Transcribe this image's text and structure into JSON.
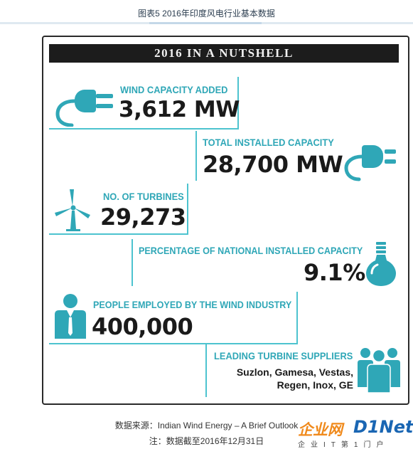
{
  "caption": "图表5  2016年印度风电行业基本数据",
  "banner": "2016 IN A NUTSHELL",
  "stats": {
    "wind_capacity": {
      "label": "WIND CAPACITY ADDED",
      "value": "3,612 MW"
    },
    "total_capacity": {
      "label": "TOTAL INSTALLED CAPACITY",
      "value": "28,700 MW"
    },
    "turbines": {
      "label": "NO. OF TURBINES",
      "value": "29,273"
    },
    "percentage": {
      "label": "PERCENTAGE OF NATIONAL INSTALLED CAPACITY",
      "value": "9.1%"
    },
    "employed": {
      "label": "PEOPLE EMPLOYED BY THE WIND INDUSTRY",
      "value": "400,000"
    },
    "suppliers": {
      "label": "LEADING TURBINE SUPPLIERS",
      "line1": "Suzlon, Gamesa, Vestas,",
      "line2": "Regen, Inox, GE"
    }
  },
  "source": "数据来源：Indian Wind Energy – A Brief Outlook",
  "note": "注：数据截至2016年12月31日",
  "watermark": {
    "part1": "企业网",
    "part2": "D1Net",
    "tagline": "企业IT第1门户"
  },
  "colors": {
    "accent": "#2fa7b7",
    "banner_bg": "#1c1c1c",
    "text": "#1a1a1a"
  },
  "icons": [
    "plug-icon",
    "wind-turbine-icon",
    "light-bulb-icon",
    "person-icon",
    "group-icon"
  ]
}
